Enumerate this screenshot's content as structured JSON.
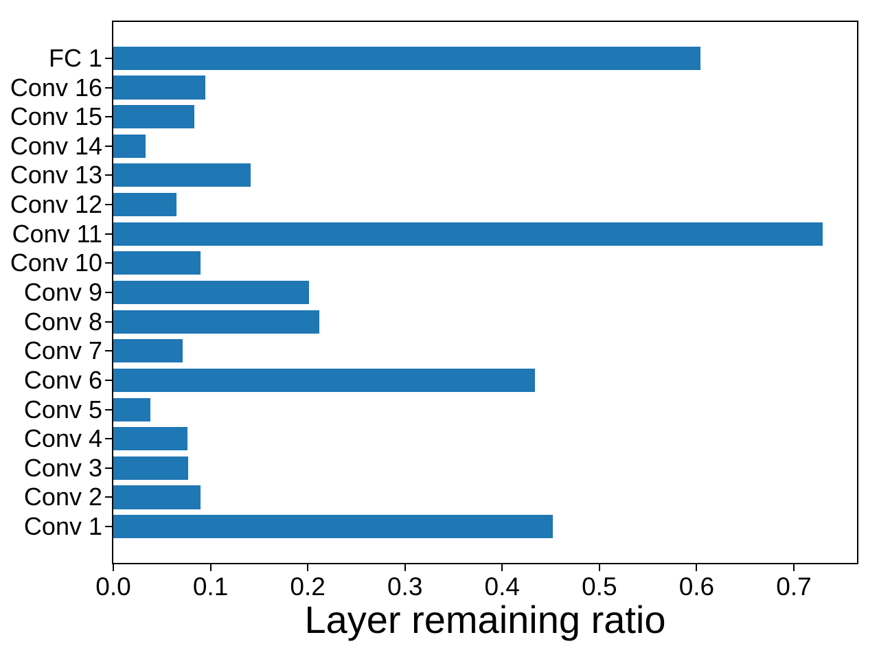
{
  "chart_data": {
    "type": "bar",
    "orientation": "horizontal",
    "title": "",
    "xlabel": "Layer remaining ratio",
    "ylabel": "",
    "categories": [
      "FC 1",
      "Conv 16",
      "Conv 15",
      "Conv 14",
      "Conv 13",
      "Conv 12",
      "Conv 11",
      "Conv 10",
      "Conv 9",
      "Conv 8",
      "Conv 7",
      "Conv 6",
      "Conv 5",
      "Conv 4",
      "Conv 3",
      "Conv 2",
      "Conv 1"
    ],
    "values": [
      0.604,
      0.095,
      0.083,
      0.033,
      0.141,
      0.065,
      0.73,
      0.09,
      0.201,
      0.212,
      0.071,
      0.434,
      0.038,
      0.076,
      0.077,
      0.09,
      0.452
    ],
    "xlim": [
      0,
      0.765
    ],
    "xticks": [
      0.0,
      0.1,
      0.2,
      0.3,
      0.4,
      0.5,
      0.6,
      0.7
    ],
    "xtick_labels": [
      "0.0",
      "0.1",
      "0.2",
      "0.3",
      "0.4",
      "0.5",
      "0.6",
      "0.7"
    ],
    "grid": false,
    "legend": null,
    "bar_color": "#1f77b4",
    "spine_color": "#000000",
    "text_color": "#000000"
  }
}
